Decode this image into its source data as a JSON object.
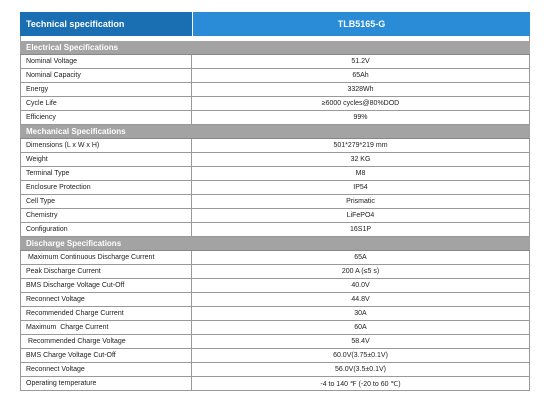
{
  "header": {
    "label": "Technical specification",
    "model": "TLB5165-G"
  },
  "sections": [
    {
      "title": "Electrical Specifications",
      "rows": [
        [
          "Nominal Voltage",
          "51.2V"
        ],
        [
          "Nominal Capacity",
          "65Ah"
        ],
        [
          "Energy",
          "3328Wh"
        ],
        [
          "Cycle Life",
          "≥6000 cycles@80%DOD"
        ],
        [
          "Efficiency",
          "99%"
        ]
      ]
    },
    {
      "title": "Mechanical Specifications",
      "rows": [
        [
          "Dimensions (L x W x H)",
          "501*279*219 mm"
        ],
        [
          "Weight",
          "32 KG"
        ],
        [
          "Terminal Type",
          "M8"
        ],
        [
          "Enclosure Protection",
          "IP54"
        ],
        [
          "Cell Type",
          "Prismatic"
        ],
        [
          "Chemistry",
          "LiFePO4"
        ],
        [
          "Configuration",
          "16S1P"
        ]
      ]
    },
    {
      "title": "Discharge Specifications",
      "rows": [
        [
          " Maximum Continuous Discharge Current",
          "65A"
        ],
        [
          "Peak Discharge Current",
          "200 A (≤5 s)"
        ],
        [
          "BMS Discharge Voltage Cut-Off",
          "40.0V"
        ],
        [
          "Reconnect Voltage",
          "44.8V"
        ],
        [
          "Recommended Charge Current",
          "30A"
        ],
        [
          "Maximum  Charge Current",
          "60A"
        ],
        [
          " Recommended Charge Voltage",
          "58.4V"
        ],
        [
          "BMS Charge Voltage Cut-Off",
          "60.0V(3.75±0.1V)"
        ],
        [
          "Reconnect Voltage",
          "56.0V(3.5±0.1V)"
        ],
        [
          "Operating temperature",
          "-4 to 140 ℉ (-20 to 60 ℃)"
        ]
      ]
    }
  ]
}
